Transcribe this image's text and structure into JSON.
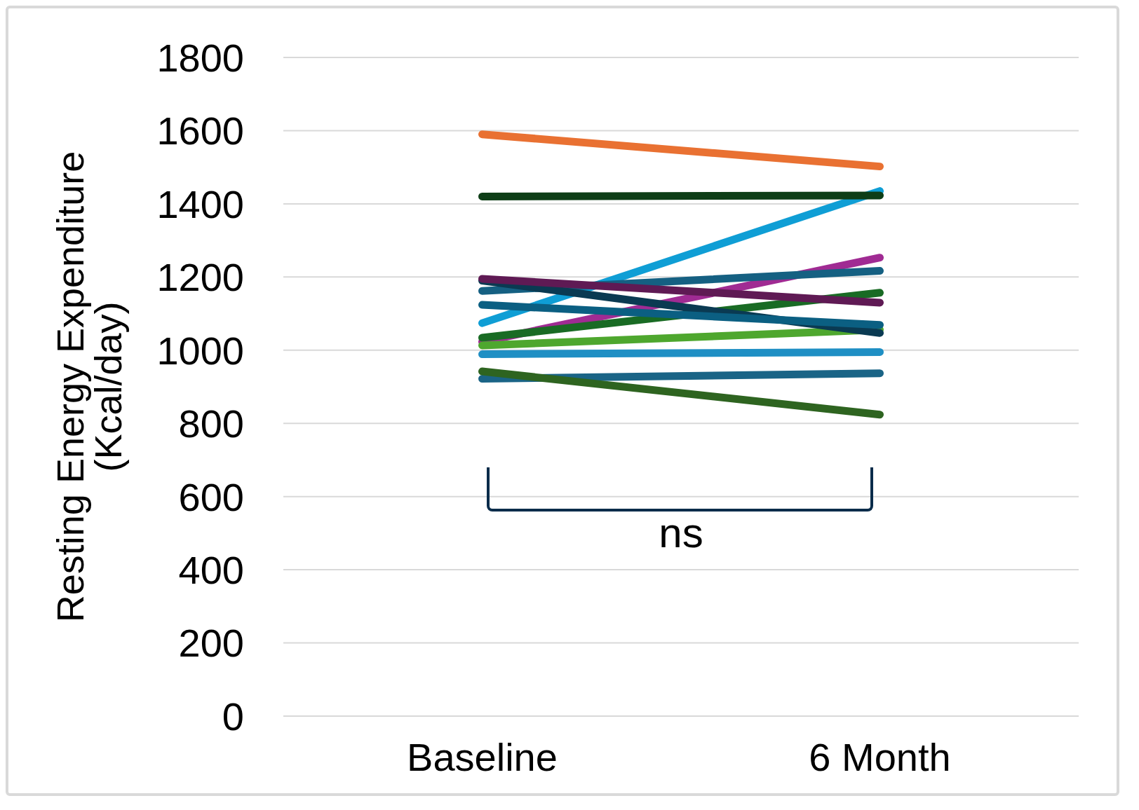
{
  "chart_data": {
    "type": "line",
    "ylabel": "Resting Energy Expenditure (Kcal/day)",
    "categories": [
      "Baseline",
      "6 Month"
    ],
    "series": [
      {
        "color": "#e97132",
        "values": [
          1590,
          1502
        ]
      },
      {
        "color": "#0f9ed5",
        "values": [
          1074,
          1435
        ]
      },
      {
        "color": "#a02b93",
        "values": [
          1023,
          1253
        ]
      },
      {
        "color": "#156082",
        "values": [
          1162,
          1217
        ]
      },
      {
        "color": "#196b24",
        "values": [
          1034,
          1157
        ]
      },
      {
        "color": "#4ea72e",
        "values": [
          1013,
          1056
        ]
      },
      {
        "color": "#0a3a52",
        "values": [
          1190,
          1047
        ]
      },
      {
        "color": "#0b5f82",
        "values": [
          1124,
          1069
        ]
      },
      {
        "color": "#1f8fc4",
        "values": [
          989,
          995
        ]
      },
      {
        "color": "#1a6486",
        "values": [
          922,
          937
        ]
      },
      {
        "color": "#2e6420",
        "values": [
          942,
          824
        ]
      },
      {
        "color": "#5f1a54",
        "values": [
          1195,
          1130
        ]
      },
      {
        "color": "#0e3e17",
        "values": [
          1420,
          1423
        ]
      }
    ],
    "ylim": [
      0,
      1800
    ],
    "yticks": [
      0,
      200,
      400,
      600,
      800,
      1000,
      1200,
      1400,
      1600,
      1800
    ],
    "grid": "y",
    "marker": "none",
    "line_style": "solid",
    "annotations": [
      "ns"
    ]
  }
}
